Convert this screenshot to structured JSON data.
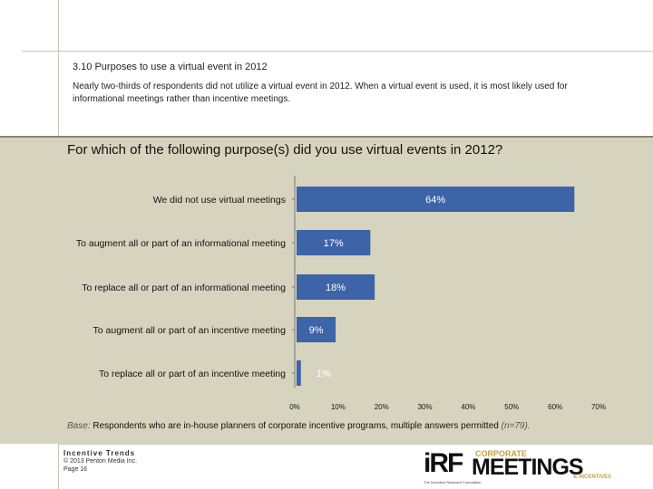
{
  "header": {
    "section_title": "3.10 Purposes to use a virtual event in 2012",
    "summary": "Nearly two-thirds of respondents did not utilize a virtual event in 2012. When a virtual event is used, it is most likely used for informational meetings rather than incentive meetings."
  },
  "question": "For which of the following purpose(s) did you use virtual events in 2012?",
  "chart_data": {
    "type": "bar",
    "orientation": "horizontal",
    "title": "For which of the following purpose(s) did you use virtual events in 2012?",
    "categories": [
      "We did not use virtual meetings",
      "To augment all or part of an informational meeting",
      "To replace all or part of an informational meeting",
      "To augment all or part of an incentive meeting",
      "To replace all or part of an incentive meeting"
    ],
    "values": [
      64,
      17,
      18,
      9,
      1
    ],
    "data_labels": [
      "64%",
      "17%",
      "18%",
      "9%",
      "1%"
    ],
    "xlim": [
      0,
      70
    ],
    "xticks": [
      0,
      10,
      20,
      30,
      40,
      50,
      60,
      70
    ],
    "xtick_labels": [
      "0%",
      "10%",
      "20%",
      "30%",
      "40%",
      "50%",
      "60%",
      "70%"
    ],
    "bar_color": "#3d63a8",
    "grid": false
  },
  "base": {
    "label": "Base:",
    "text": "Respondents who are in-house planners of corporate incentive programs, multiple answers permitted",
    "n": "(n=79)."
  },
  "footer": {
    "title": "Incentive Trends",
    "copyright": "© 2013 Penton Media Inc.",
    "page": "Page 16"
  },
  "logos": {
    "irf": "iRF",
    "irf_sub": "The Incentive Research Foundation",
    "meetings_top": "CORPORATE",
    "meetings": "MEETINGS",
    "meetings_sub": "& INCENTIVES"
  }
}
